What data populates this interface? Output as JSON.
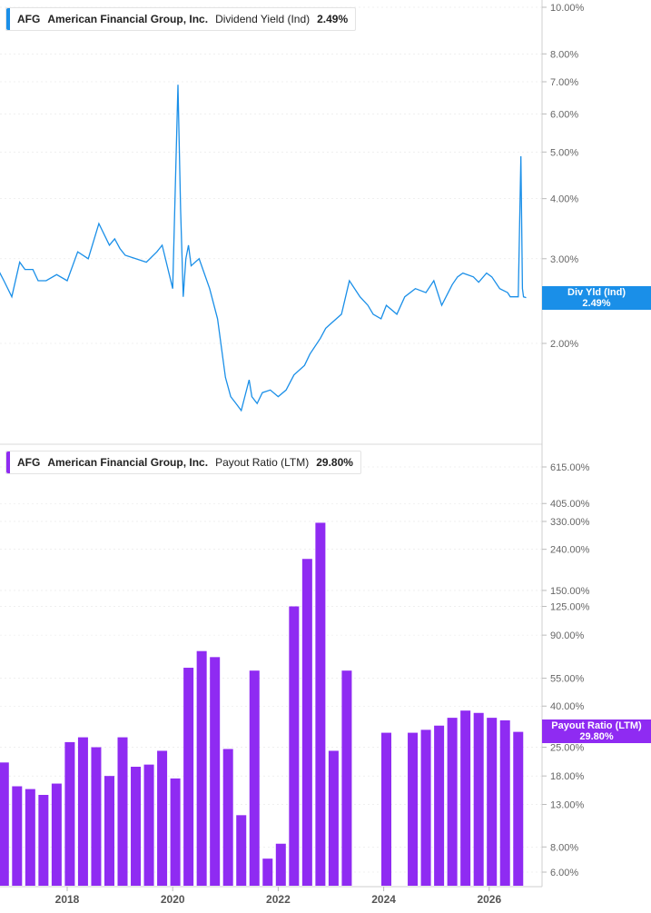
{
  "colors": {
    "yield": "#1a8fe8",
    "payout": "#8f2bf2",
    "grid": "#e6e6e6",
    "axis_text": "#666666"
  },
  "chart_data": [
    {
      "type": "line",
      "legend": {
        "ticker": "AFG",
        "name": "American Financial Group, Inc.",
        "metric": "Dividend Yield (Ind)",
        "value": "2.49%"
      },
      "badge": {
        "label": "Div Yld (Ind)",
        "value": "2.49%"
      },
      "y_scale": "log",
      "y_ticks": [
        "10.00%",
        "8.00%",
        "7.00%",
        "6.00%",
        "5.00%",
        "4.00%",
        "3.00%",
        "2.00%"
      ],
      "series": [
        {
          "name": "Div Yld (Ind)",
          "x": [
            2016.55,
            2016.8,
            2016.95,
            2017.1,
            2017.2,
            2017.35,
            2017.45,
            2017.6,
            2017.8,
            2018.0,
            2018.2,
            2018.4,
            2018.6,
            2018.8,
            2018.9,
            2019.0,
            2019.1,
            2019.3,
            2019.5,
            2019.7,
            2019.8,
            2020.0,
            2020.1,
            2020.15,
            2020.2,
            2020.25,
            2020.3,
            2020.35,
            2020.5,
            2020.7,
            2020.85,
            2021.0,
            2021.1,
            2021.2,
            2021.3,
            2021.45,
            2021.5,
            2021.6,
            2021.7,
            2021.85,
            2022.0,
            2022.15,
            2022.3,
            2022.5,
            2022.6,
            2022.8,
            2022.9,
            2023.0,
            2023.2,
            2023.35,
            2023.55,
            2023.7,
            2023.8,
            2023.95,
            2024.05,
            2024.25,
            2024.4,
            2024.6,
            2024.8,
            2024.95,
            2025.1,
            2025.3,
            2025.4,
            2025.5,
            2025.7,
            2025.8,
            2025.95,
            2026.05,
            2026.2,
            2026.35,
            2026.4,
            2026.55,
            2026.6,
            2026.63,
            2026.65,
            2026.7
          ],
          "values": [
            3.05,
            2.7,
            2.5,
            2.95,
            2.85,
            2.85,
            2.7,
            2.7,
            2.78,
            2.7,
            3.1,
            3.0,
            3.55,
            3.2,
            3.3,
            3.15,
            3.05,
            3.0,
            2.95,
            3.1,
            3.2,
            2.6,
            6.9,
            3.8,
            2.5,
            3.0,
            3.2,
            2.9,
            3.0,
            2.6,
            2.25,
            1.7,
            1.55,
            1.5,
            1.45,
            1.68,
            1.55,
            1.5,
            1.58,
            1.6,
            1.55,
            1.6,
            1.72,
            1.8,
            1.9,
            2.05,
            2.15,
            2.2,
            2.3,
            2.7,
            2.5,
            2.4,
            2.3,
            2.25,
            2.4,
            2.3,
            2.5,
            2.6,
            2.55,
            2.7,
            2.4,
            2.65,
            2.75,
            2.8,
            2.75,
            2.68,
            2.8,
            2.75,
            2.6,
            2.55,
            2.5,
            2.5,
            4.9,
            2.6,
            2.5,
            2.49
          ]
        }
      ]
    },
    {
      "type": "bar",
      "legend": {
        "ticker": "AFG",
        "name": "American Financial Group, Inc.",
        "metric": "Payout Ratio (LTM)",
        "value": "29.80%"
      },
      "badge": {
        "label": "Payout Ratio (LTM)",
        "value": "29.80%"
      },
      "y_scale": "log",
      "y_ticks": [
        "615.00%",
        "405.00%",
        "330.00%",
        "240.00%",
        "150.00%",
        "125.00%",
        "90.00%",
        "55.00%",
        "40.00%",
        "25.00%",
        "18.00%",
        "13.00%",
        "8.00%",
        "6.00%"
      ],
      "x_ticks": [
        "2018",
        "2020",
        "2022",
        "2024",
        "2026"
      ],
      "series": [
        {
          "name": "Payout Ratio (LTM)",
          "x": [
            2016.55,
            2016.8,
            2017.05,
            2017.3,
            2017.55,
            2017.8,
            2018.05,
            2018.3,
            2018.55,
            2018.8,
            2019.05,
            2019.3,
            2019.55,
            2019.8,
            2020.05,
            2020.3,
            2020.55,
            2020.8,
            2021.05,
            2021.3,
            2021.55,
            2021.8,
            2022.05,
            2022.3,
            2022.55,
            2022.8,
            2023.05,
            2023.3,
            2023.55,
            2023.8,
            2024.05,
            2024.3,
            2024.55,
            2024.8,
            2025.05,
            2025.3,
            2025.55,
            2025.8,
            2026.05,
            2026.3,
            2026.55
          ],
          "values": [
            28,
            21,
            16,
            15.5,
            14.5,
            16.5,
            26.5,
            28,
            25,
            18,
            28,
            20,
            20.5,
            24,
            17.5,
            62,
            75,
            70,
            24.5,
            11.5,
            60,
            7,
            8.3,
            125,
            215,
            325,
            24,
            60,
            null,
            null,
            29.5,
            null,
            29.5,
            30.5,
            32,
            35,
            38,
            37,
            35,
            34,
            29.8
          ]
        }
      ]
    }
  ]
}
